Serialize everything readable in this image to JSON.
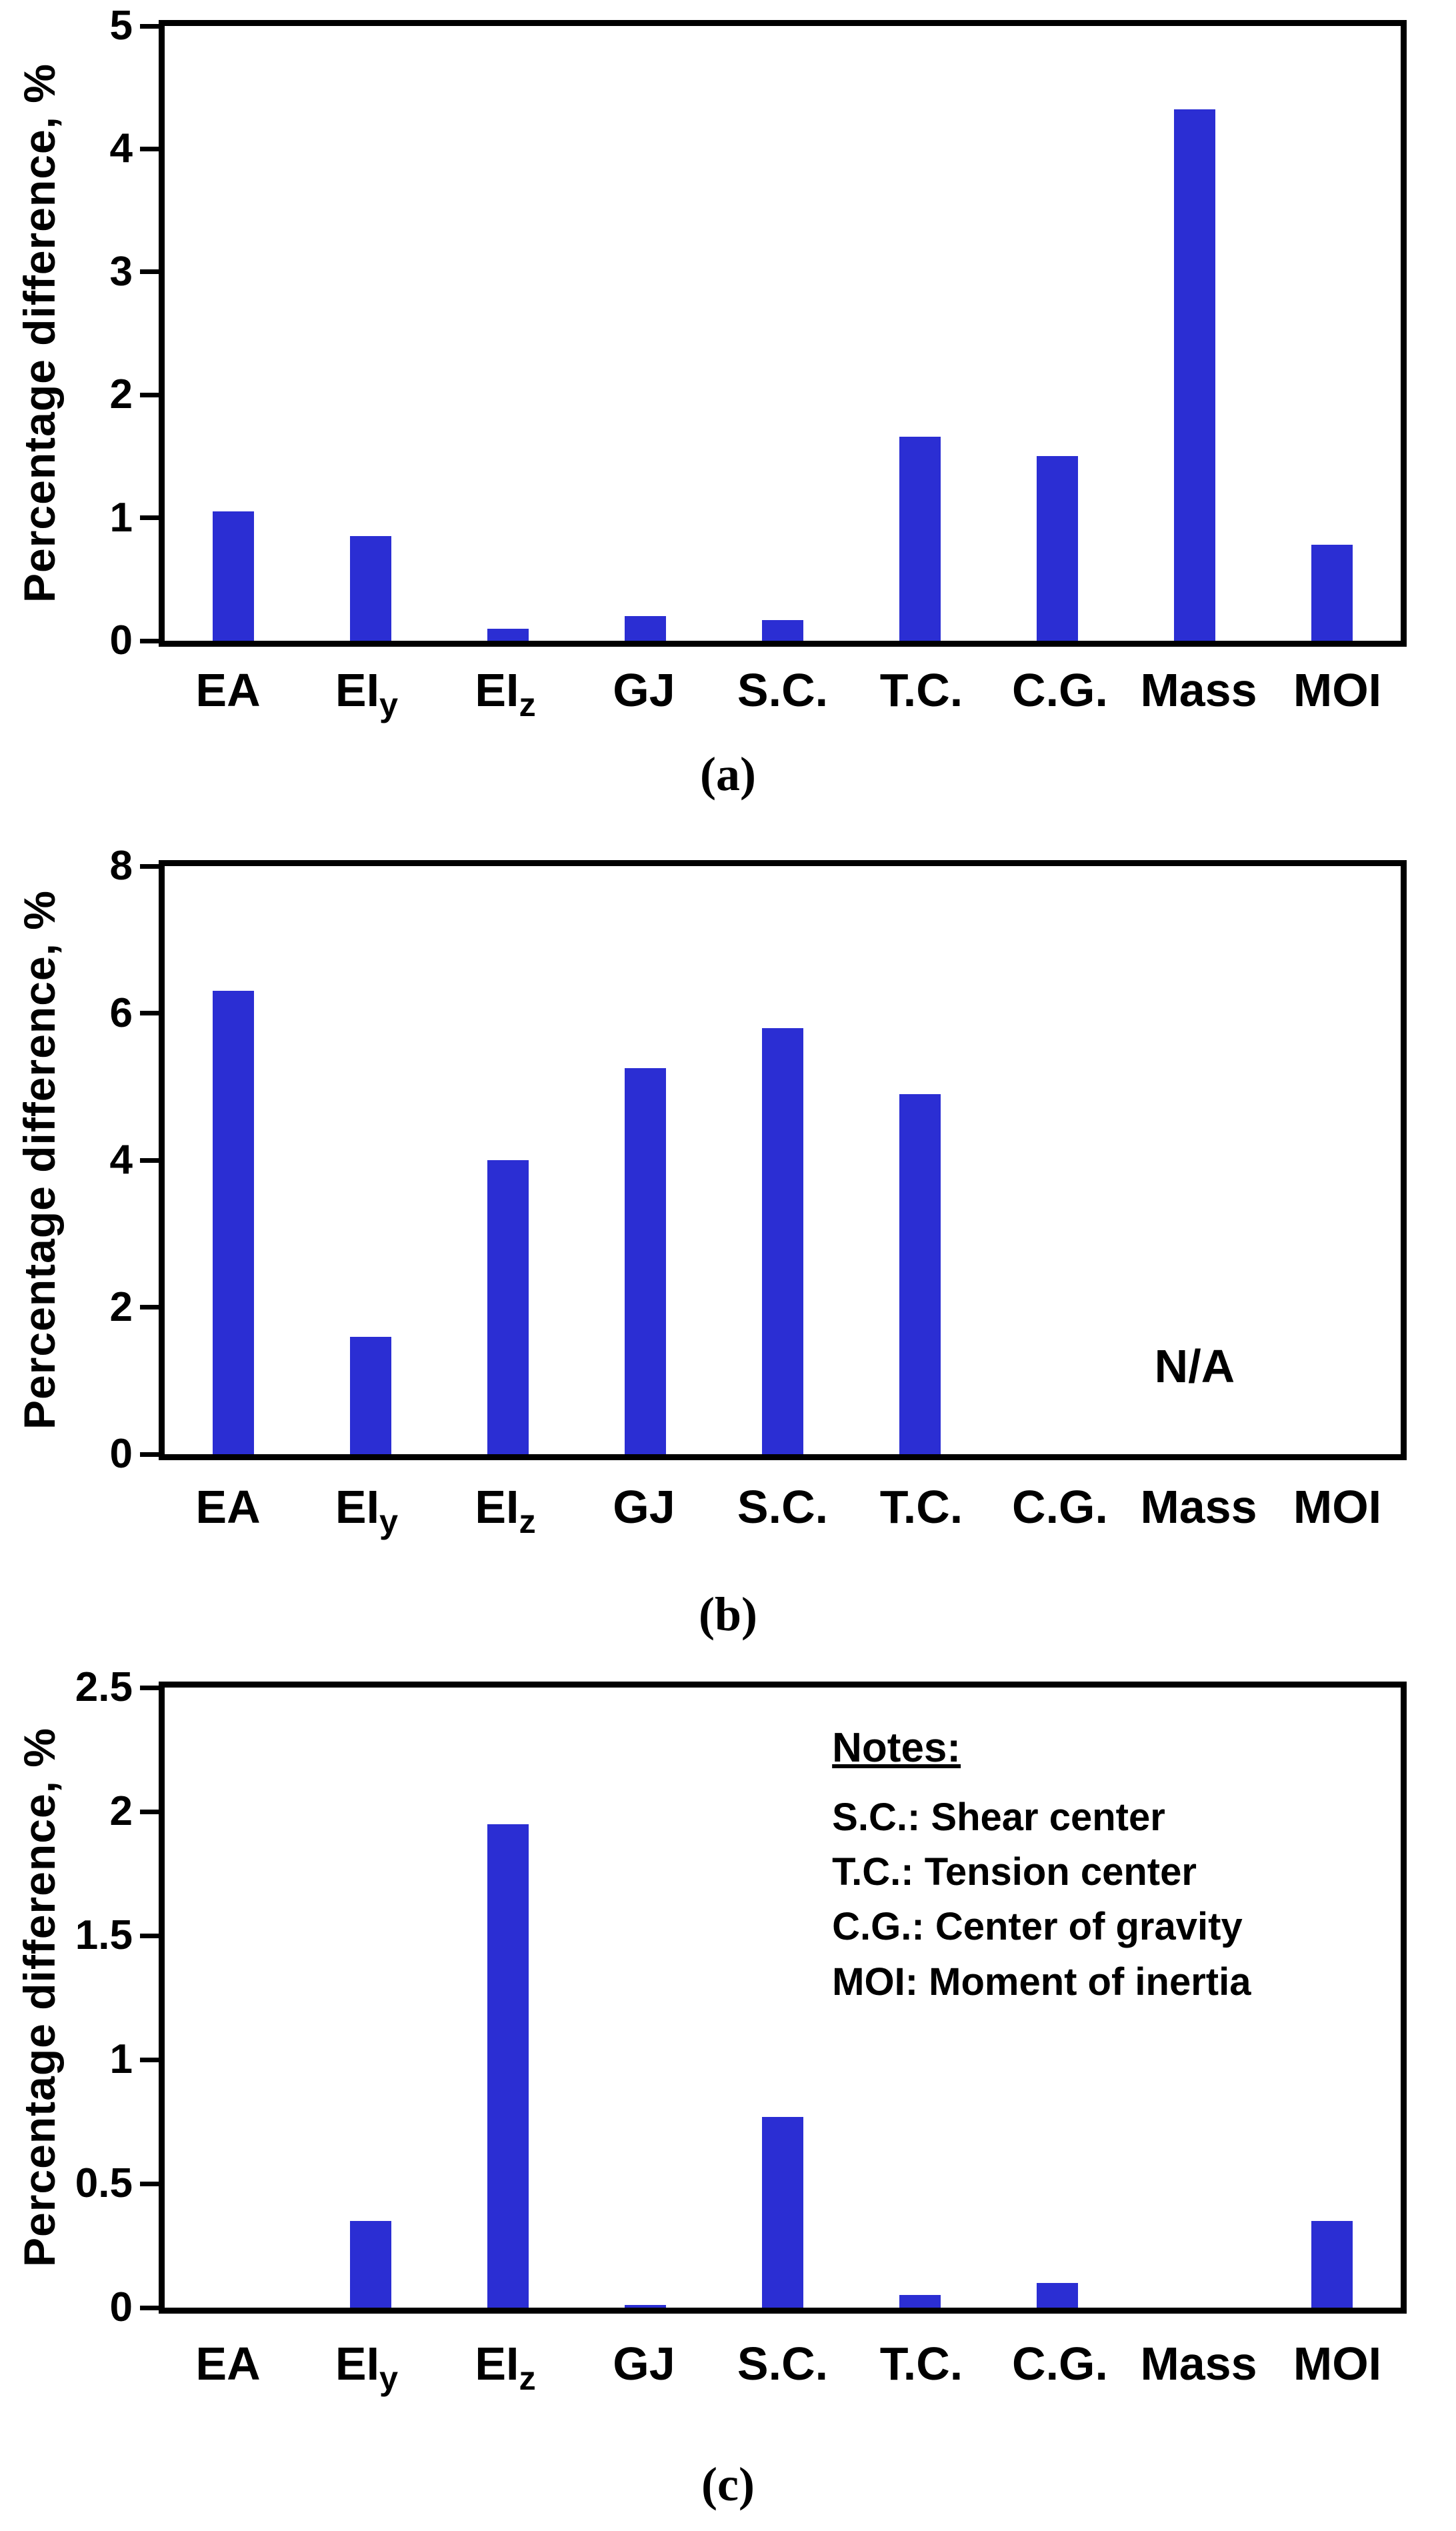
{
  "figure": {
    "background": "#ffffff",
    "bar_color": "#2b2ed3",
    "axis_color": "#000000"
  },
  "chart_data": [
    {
      "type": "bar",
      "caption": "(a)",
      "ylabel": "Percentage difference, %",
      "ylim": [
        0,
        5
      ],
      "yticks": [
        0,
        1,
        2,
        3,
        4,
        5
      ],
      "categories": [
        "EA",
        "EI_y",
        "EI_z",
        "GJ",
        "S.C.",
        "T.C.",
        "C.G.",
        "Mass",
        "MOI"
      ],
      "values": [
        1.05,
        0.85,
        0.1,
        0.2,
        0.17,
        1.66,
        1.5,
        4.32,
        0.78
      ],
      "grid": false,
      "legend": "none"
    },
    {
      "type": "bar",
      "caption": "(b)",
      "ylabel": "Percentage difference, %",
      "ylim": [
        0,
        8
      ],
      "yticks": [
        0,
        2,
        4,
        6,
        8
      ],
      "categories": [
        "EA",
        "EI_y",
        "EI_z",
        "GJ",
        "S.C.",
        "T.C.",
        "C.G.",
        "Mass",
        "MOI"
      ],
      "values": [
        6.3,
        1.6,
        4.0,
        5.25,
        5.8,
        4.9,
        0,
        0,
        0
      ],
      "annotation": {
        "text": "N/A"
      },
      "grid": false,
      "legend": "none"
    },
    {
      "type": "bar",
      "caption": "(c)",
      "ylabel": "Percentage difference, %",
      "ylim": [
        0,
        2.5
      ],
      "yticks": [
        0,
        0.5,
        1,
        1.5,
        2,
        2.5
      ],
      "categories": [
        "EA",
        "EI_y",
        "EI_z",
        "GJ",
        "S.C.",
        "T.C.",
        "C.G.",
        "Mass",
        "MOI"
      ],
      "values": [
        0,
        0.35,
        1.95,
        0.01,
        0.77,
        0.05,
        0.1,
        0,
        0.35
      ],
      "notes": {
        "title": "Notes:",
        "lines": [
          "S.C.: Shear center",
          "T.C.: Tension center",
          "C.G.: Center of gravity",
          "MOI: Moment of inertia"
        ]
      },
      "grid": false,
      "legend": "none"
    }
  ]
}
